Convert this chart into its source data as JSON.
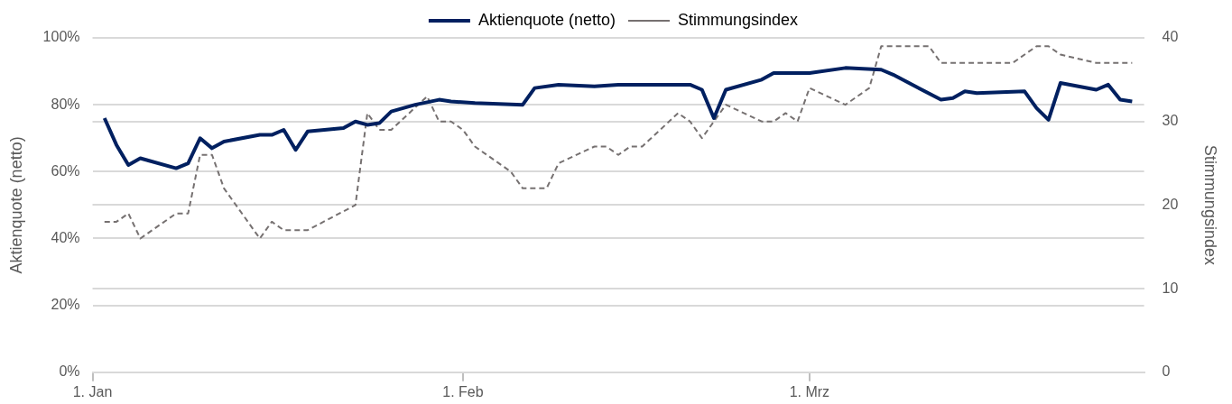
{
  "chart_data": {
    "type": "line",
    "ylabel": "Aktienquote (netto)",
    "y2label": "Stimmungsindex",
    "xlim": [
      "--01-01",
      "--03-29"
    ],
    "xticks": [
      {
        "value": "--01-01",
        "label": "1. Jan"
      },
      {
        "value": "--02-01",
        "label": "1. Feb"
      },
      {
        "value": "--03-01",
        "label": "1. Mrz"
      }
    ],
    "ylim": [
      0,
      100
    ],
    "yticks": [
      {
        "value": 0,
        "label": "0%"
      },
      {
        "value": 20,
        "label": "20%"
      },
      {
        "value": 40,
        "label": "40%"
      },
      {
        "value": 60,
        "label": "60%"
      },
      {
        "value": 80,
        "label": "80%"
      },
      {
        "value": 100,
        "label": "100%"
      }
    ],
    "y2lim": [
      0,
      40
    ],
    "y2ticks": [
      0,
      10,
      20,
      30,
      40
    ],
    "grid": "y",
    "legend": "top",
    "marker": "none",
    "series": [
      {
        "name": "Aktienquote (netto)",
        "color": "#002060",
        "line_style": "solid",
        "x": [
          "--01-02",
          "--01-03",
          "--01-04",
          "--01-05",
          "--01-08",
          "--01-09",
          "--01-10",
          "--01-11",
          "--01-12",
          "--01-15",
          "--01-16",
          "--01-17",
          "--01-18",
          "--01-19",
          "--01-22",
          "--01-23",
          "--01-24",
          "--01-25",
          "--01-26",
          "--01-28",
          "--01-30",
          "--01-31",
          "--02-02",
          "--02-06",
          "--02-07",
          "--02-09",
          "--02-12",
          "--02-14",
          "--02-20",
          "--02-21",
          "--02-22",
          "--02-23",
          "--02-26",
          "--02-27",
          "--03-01",
          "--03-04",
          "--03-07",
          "--03-08",
          "--03-12",
          "--03-13",
          "--03-14",
          "--03-15",
          "--03-19",
          "--03-20",
          "--03-21",
          "--03-22",
          "--03-25",
          "--03-26",
          "--03-27",
          "--03-28"
        ],
        "values": [
          76,
          68,
          62,
          64,
          61,
          62.5,
          70,
          67,
          69,
          71,
          71,
          72.5,
          66.5,
          72,
          73,
          75,
          74,
          74.5,
          78,
          80,
          81.5,
          81,
          80.5,
          80,
          85,
          86,
          85.5,
          86,
          86,
          84.5,
          76,
          84.5,
          87.5,
          89.5,
          89.5,
          91,
          90.5,
          89,
          81.5,
          82,
          84,
          83.5,
          84,
          79,
          75.5,
          86.5,
          84.5,
          86,
          81.5,
          81
        ]
      },
      {
        "name": "Stimmungsindex",
        "color": "#767171",
        "line_style": "dashed",
        "axis": "y2",
        "x": [
          "--01-02",
          "--01-03",
          "--01-04",
          "--01-05",
          "--01-08",
          "--01-09",
          "--01-10",
          "--01-11",
          "--01-12",
          "--01-15",
          "--01-16",
          "--01-17",
          "--01-19",
          "--01-23",
          "--01-24",
          "--01-25",
          "--01-26",
          "--01-29",
          "--01-30",
          "--01-31",
          "--02-01",
          "--02-02",
          "--02-05",
          "--02-06",
          "--02-08",
          "--02-09",
          "--02-12",
          "--02-13",
          "--02-14",
          "--02-15",
          "--02-16",
          "--02-19",
          "--02-20",
          "--02-21",
          "--02-22",
          "--02-23",
          "--02-26",
          "--02-27",
          "--02-28",
          "--02-29",
          "--03-01",
          "--03-04",
          "--03-06",
          "--03-07",
          "--03-11",
          "--03-12",
          "--03-18",
          "--03-20",
          "--03-21",
          "--03-22",
          "--03-25",
          "--03-28"
        ],
        "values": [
          18,
          18,
          19,
          16,
          19,
          19,
          26,
          26,
          22,
          16,
          18,
          17,
          17,
          20,
          31,
          29,
          29,
          33,
          30,
          30,
          29,
          27,
          24,
          22,
          22,
          25,
          27,
          27,
          26,
          27,
          27,
          31,
          30,
          28,
          30,
          32,
          30,
          30,
          31,
          30,
          34,
          32,
          34,
          39,
          39,
          37,
          37,
          39,
          39,
          38,
          37,
          37
        ]
      }
    ]
  }
}
